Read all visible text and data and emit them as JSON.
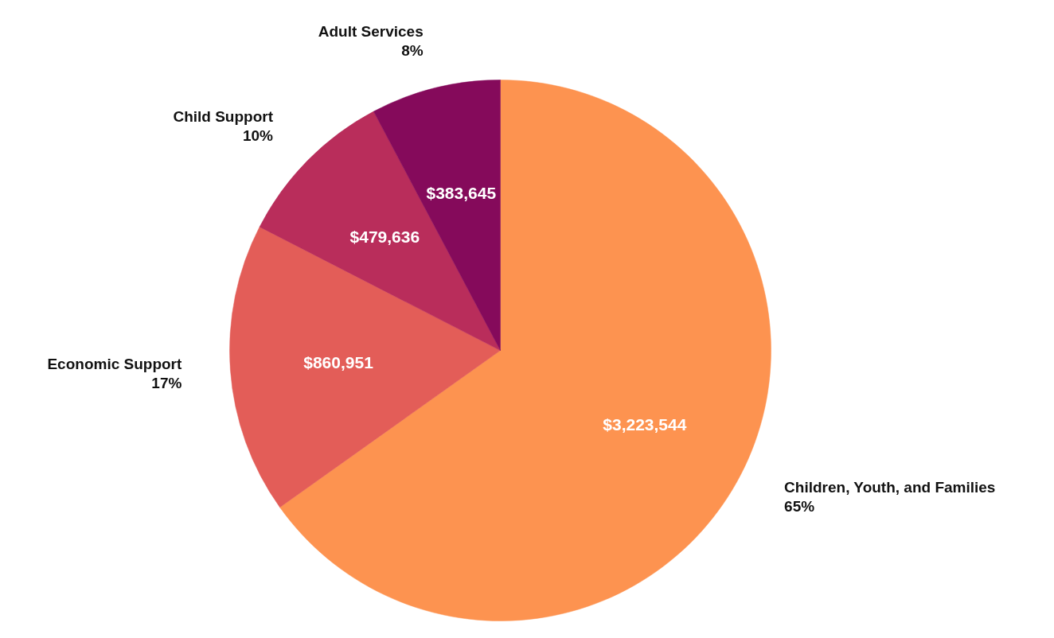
{
  "chart_data": {
    "type": "pie",
    "categories": [
      "Children, Youth, and Families",
      "Economic Support",
      "Child Support",
      "Adult Services"
    ],
    "values": [
      3223544,
      860951,
      479636,
      383645
    ],
    "colors": [
      "#fd9350",
      "#e35d58",
      "#b92d5b",
      "#850a5b"
    ],
    "value_labels": [
      "$3,223,544",
      "$860,951",
      "$479,636",
      "$383,645"
    ],
    "annotations": [
      {
        "text": "65%",
        "x": "Children, Youth, and Families"
      },
      {
        "text": "17%",
        "x": "Economic Support"
      },
      {
        "text": "10%",
        "x": "Child Support"
      },
      {
        "text": "8%",
        "x": "Adult Services"
      }
    ]
  }
}
